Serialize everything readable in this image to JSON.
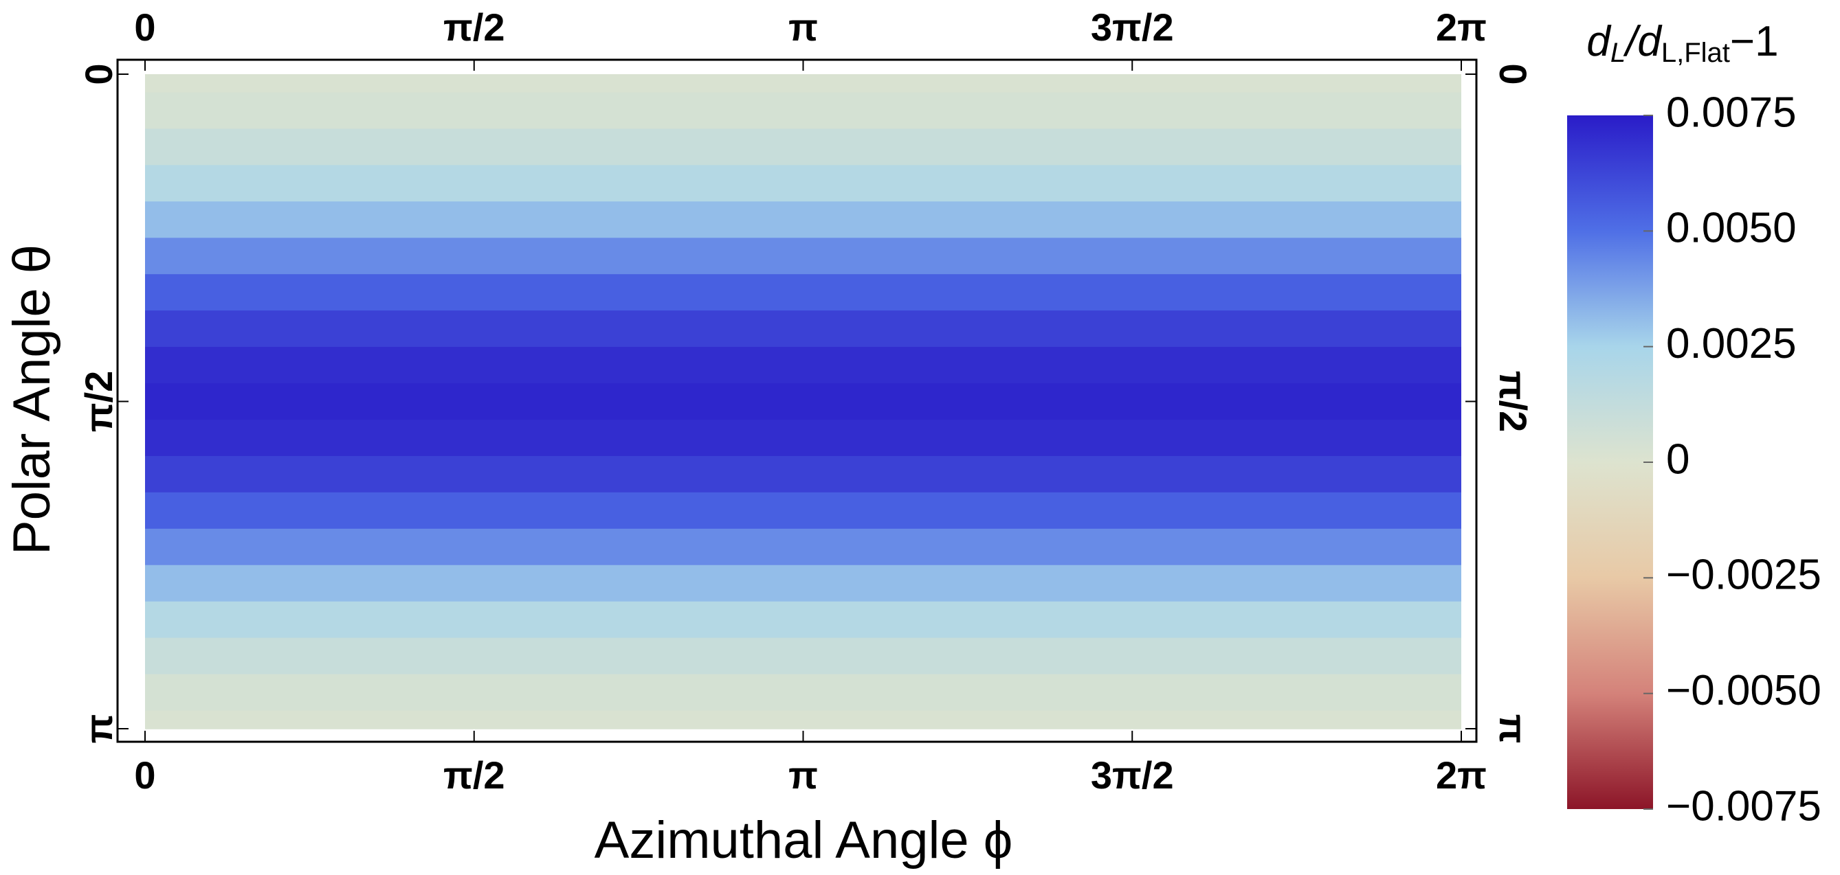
{
  "chart_data": {
    "type": "heatmap",
    "x_label": "Azimuthal Angle ϕ",
    "y_label": "Polar Angle θ",
    "colorbar_label": [
      "d",
      "L",
      "/d",
      "L,Flat",
      "−1"
    ],
    "xlim": [
      0,
      6.2832
    ],
    "ylim": [
      0,
      3.1416
    ],
    "xticks": [
      0,
      {
        "value": 1.5708,
        "label": "π/2"
      },
      {
        "value": 3.1416,
        "label": "π"
      },
      {
        "value": 4.7124,
        "label": "3π/2"
      },
      {
        "value": 6.2832,
        "label": "2π"
      }
    ],
    "yticks": [
      0,
      {
        "value": 1.5708,
        "label": "π/2"
      },
      {
        "value": 3.1416,
        "label": "π"
      }
    ],
    "y": [
      0,
      0.1745,
      0.3491,
      0.5236,
      0.6981,
      0.8727,
      1.0472,
      1.2217,
      1.3963,
      1.5708,
      1.7453,
      1.9199,
      2.0944,
      2.2689,
      2.4435,
      2.618,
      2.7925,
      2.9671,
      3.1416
    ],
    "values": [
      0.0002,
      0.00041,
      0.00102,
      0.00195,
      0.00309,
      0.00431,
      0.00545,
      0.00638,
      0.00699,
      0.0072,
      0.00699,
      0.00638,
      0.00545,
      0.00431,
      0.00309,
      0.00195,
      0.00102,
      0.00041,
      0.0002
    ],
    "clim": [
      -0.0075,
      0.0075
    ],
    "colorbar_ticks": [
      0.0075,
      {
        "value": 0.005,
        "label": "0.0050"
      },
      0.0025,
      0,
      {
        "value": -0.0025,
        "label": "−0.0025"
      },
      {
        "value": -0.005,
        "label": "−0.0050"
      },
      {
        "value": -0.0075,
        "label": "−0.0075"
      }
    ],
    "colormap": [
      "#8c1528",
      "#d4827a",
      "#e8c9a6",
      "#dde3cf",
      "#a8d5ea",
      "#4f6fe6",
      "#2a1cc8"
    ]
  }
}
